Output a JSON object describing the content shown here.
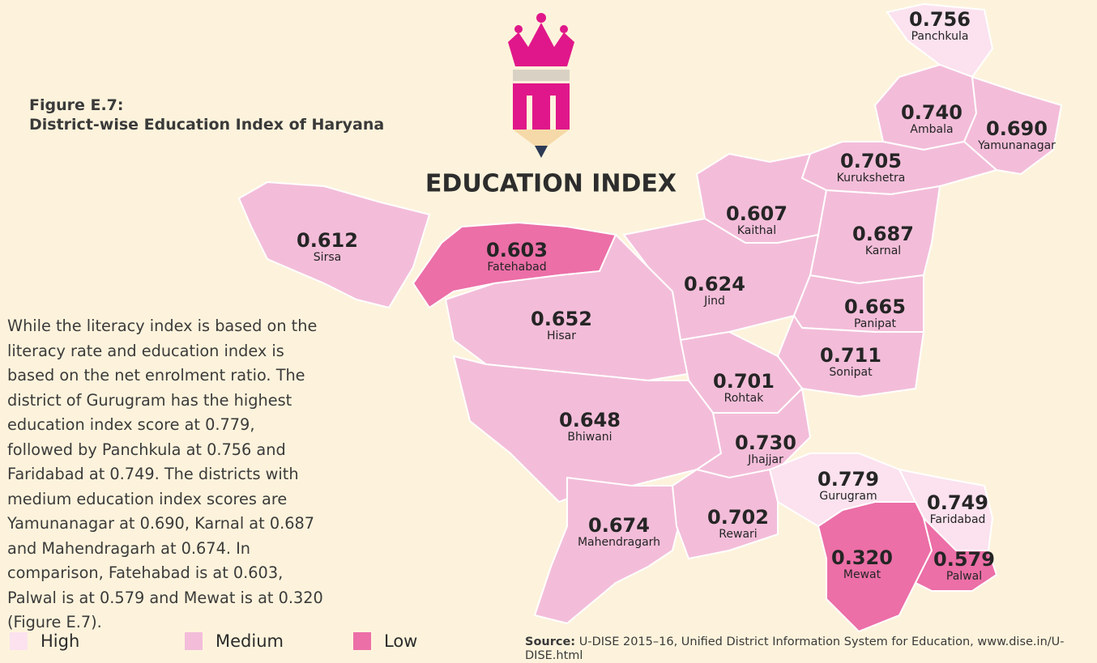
{
  "figure": {
    "label": "Figure E.7:",
    "title": "District-wise Education Index of Haryana"
  },
  "heading": "EDUCATION INDEX",
  "paragraph": "While the literacy index is based on the literacy rate and education index is based on the net enrolment ratio. The district of Gurugram has the highest education index score at 0.779, followed by Panchkula at 0.756 and Faridabad at 0.749. The districts with medium education index scores are Yamunanagar at 0.690, Karnal at 0.687 and Mahendragarh at 0.674. In comparison, Fatehabad is at 0.603, Palwal is at 0.579 and Mewat is at 0.320 (Figure E.7).",
  "legend": [
    {
      "label": "High",
      "color": "#fbe2ee"
    },
    {
      "label": "Medium",
      "color": "#f3bdd9"
    },
    {
      "label": "Low",
      "color": "#ec6fa7"
    }
  ],
  "districts": [
    {
      "name": "Panchkula",
      "value": "0.756",
      "level": 0
    },
    {
      "name": "Ambala",
      "value": "0.740",
      "level": 1
    },
    {
      "name": "Yamunanagar",
      "value": "0.690",
      "level": 1
    },
    {
      "name": "Kurukshetra",
      "value": "0.705",
      "level": 1
    },
    {
      "name": "Kaithal",
      "value": "0.607",
      "level": 1
    },
    {
      "name": "Karnal",
      "value": "0.687",
      "level": 1
    },
    {
      "name": "Sirsa",
      "value": "0.612",
      "level": 1
    },
    {
      "name": "Fatehabad",
      "value": "0.603",
      "level": 2
    },
    {
      "name": "Jind",
      "value": "0.624",
      "level": 1
    },
    {
      "name": "Hisar",
      "value": "0.652",
      "level": 1
    },
    {
      "name": "Panipat",
      "value": "0.665",
      "level": 1
    },
    {
      "name": "Sonipat",
      "value": "0.711",
      "level": 1
    },
    {
      "name": "Rohtak",
      "value": "0.701",
      "level": 1
    },
    {
      "name": "Bhiwani",
      "value": "0.648",
      "level": 1
    },
    {
      "name": "Jhajjar",
      "value": "0.730",
      "level": 1
    },
    {
      "name": "Gurugram",
      "value": "0.779",
      "level": 0
    },
    {
      "name": "Faridabad",
      "value": "0.749",
      "level": 0
    },
    {
      "name": "Mahendragarh",
      "value": "0.674",
      "level": 1
    },
    {
      "name": "Rewari",
      "value": "0.702",
      "level": 1
    },
    {
      "name": "Mewat",
      "value": "0.320",
      "level": 2
    },
    {
      "name": "Palwal",
      "value": "0.579",
      "level": 2
    }
  ],
  "source": {
    "label": "Source:",
    "text": "U-DISE 2015–16, Unified District Information System for Education, www.dise.in/U-DISE.html"
  }
}
